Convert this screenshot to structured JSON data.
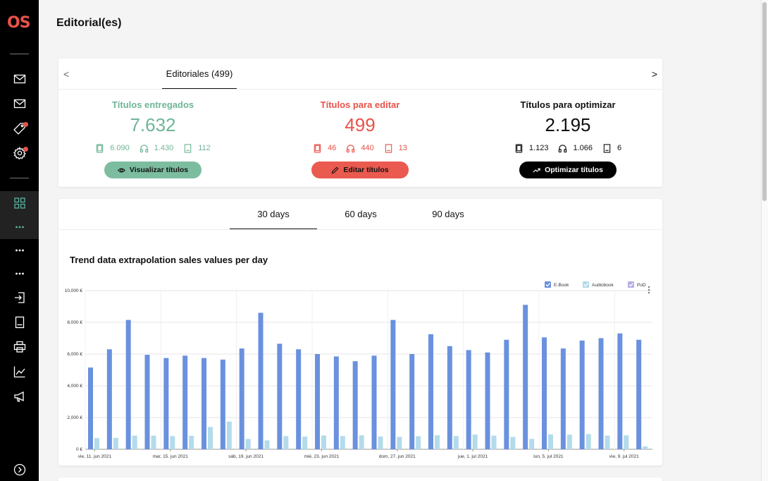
{
  "app": {
    "logo": "OS",
    "page_title": "Editorial(es)"
  },
  "sidebar": {
    "items": [
      {
        "icon": "mail-icon"
      },
      {
        "icon": "mail-icon"
      },
      {
        "icon": "tag-icon",
        "badge": true
      },
      {
        "icon": "gear-icon",
        "badge": true
      },
      {
        "icon": "grid-icon",
        "active": true
      },
      {
        "icon": "more-icon",
        "active": true
      },
      {
        "icon": "more-icon"
      },
      {
        "icon": "more-icon"
      },
      {
        "icon": "sign-in-icon"
      },
      {
        "icon": "book-icon"
      },
      {
        "icon": "printer-icon"
      },
      {
        "icon": "chart-line-icon"
      },
      {
        "icon": "megaphone-icon"
      },
      {
        "icon": "chevron-right-circle-icon"
      }
    ]
  },
  "publishers": {
    "prev": "<",
    "next": ">",
    "tab_label": "Editoriales (499)"
  },
  "stats": [
    {
      "label": "Títulos entregados",
      "value": "7.632",
      "color": "#6fb597",
      "ebook": "6.090",
      "audio": "1.430",
      "pod": "112",
      "button": "Visualizar títulos",
      "button_icon": "eye-icon",
      "button_bg": "#7cbd9f",
      "button_fg": "#111"
    },
    {
      "label": "Títulos para editar",
      "value": "499",
      "color": "#e8524a",
      "ebook": "46",
      "audio": "440",
      "pod": "13",
      "button": "Editar títulos",
      "button_icon": "pencil-icon",
      "button_bg": "#ea5a4f",
      "button_fg": "#111"
    },
    {
      "label": "Títulos para optimizar",
      "value": "2.195",
      "color": "#111111",
      "ebook": "1.123",
      "audio": "1.066",
      "pod": "6",
      "button": "Optimizar títulos",
      "button_icon": "trending-up-icon",
      "button_bg": "#000000",
      "button_fg": "#ffffff"
    }
  ],
  "period_tabs": [
    "30 days",
    "60 days",
    "90 days"
  ],
  "chart_title": "Trend data extrapolation sales values per day",
  "chart_data": {
    "type": "bar",
    "title": "Trend data extrapolation sales values per day",
    "y_ticks": [
      "10,000 €",
      "8,000 €",
      "6,000 €",
      "4,000 €",
      "2,000 €",
      "0 €"
    ],
    "ylim": [
      0,
      10000
    ],
    "x_tick_labels": [
      "vie, 11. jun 2021",
      "mar, 15. jun 2021",
      "sáb, 19. jun 2021",
      "mié, 23. jun 2021",
      "dom, 27. jun 2021",
      "jue, 1. jul 2021",
      "lun, 5. jul 2021",
      "vie, 9. jul 2021"
    ],
    "x_tick_index": [
      0,
      4,
      8,
      12,
      16,
      20,
      24,
      28
    ],
    "legend_placement": "top-right",
    "series": [
      {
        "name": "E-Book",
        "color": "#6a91de",
        "values": [
          5150,
          6300,
          8150,
          5950,
          5750,
          5900,
          5750,
          5650,
          6350,
          8600,
          6650,
          6300,
          6000,
          5850,
          5550,
          5900,
          8150,
          6000,
          7250,
          6500,
          6250,
          6100,
          6900,
          9100,
          7050,
          6350,
          6850,
          7000,
          7300,
          6900
        ]
      },
      {
        "name": "Audiobook",
        "color": "#b3dbea",
        "values": [
          700,
          720,
          860,
          860,
          830,
          850,
          1400,
          1750,
          650,
          560,
          830,
          800,
          870,
          830,
          880,
          800,
          780,
          820,
          880,
          830,
          930,
          860,
          780,
          650,
          940,
          920,
          960,
          860,
          880,
          180
        ]
      },
      {
        "name": "PoD",
        "color": "#b6aee6",
        "values": [
          0,
          0,
          0,
          0,
          0,
          0,
          0,
          0,
          0,
          0,
          0,
          0,
          0,
          0,
          0,
          0,
          0,
          0,
          0,
          0,
          0,
          0,
          0,
          0,
          0,
          0,
          0,
          0,
          0,
          0
        ]
      }
    ]
  }
}
